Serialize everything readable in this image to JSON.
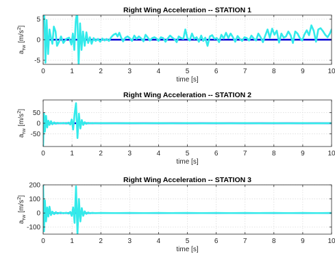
{
  "colors": {
    "reference_series": "#0000d6",
    "measured_series": "#33eaea"
  },
  "chart_data": [
    {
      "type": "line",
      "title": "Right Wing Acceleration -- STATION 1",
      "xlabel": "time [s]",
      "ylabel": {
        "base": "a",
        "sub": "rw",
        "unit_open": " [m/s",
        "unit_sup": "2",
        "unit_close": "]"
      },
      "xlim": [
        0,
        10
      ],
      "ylim": [
        -6,
        6
      ],
      "xticks": [
        0,
        1,
        2,
        3,
        4,
        5,
        6,
        7,
        8,
        9,
        10
      ],
      "yticks": [
        -5,
        0,
        5
      ],
      "grid": true,
      "series": [
        {
          "color": "#0000d6",
          "x": [
            0.1,
            10
          ],
          "y": [
            0,
            0
          ]
        },
        {
          "color": "#33eaea",
          "x": [
            0,
            0.04,
            0.08,
            0.12,
            0.17,
            0.22,
            0.27,
            0.32,
            0.37,
            0.43,
            0.48,
            0.55,
            0.62,
            0.7,
            0.8,
            0.9,
            0.98,
            1.03,
            1.08,
            1.13,
            1.18,
            1.23,
            1.28,
            1.33,
            1.38,
            1.44,
            1.5,
            1.56,
            1.62,
            1.68,
            1.75,
            1.82,
            1.9,
            1.98,
            2.05,
            2.13,
            2.2,
            2.28,
            2.36,
            2.44,
            2.52,
            2.58,
            2.64,
            2.7,
            2.77,
            2.85,
            2.93,
            3.0,
            3.08,
            3.16,
            3.24,
            3.32,
            3.4,
            3.48,
            3.55,
            3.62,
            3.7,
            3.78,
            3.86,
            3.93,
            4.0,
            4.08,
            4.16,
            4.24,
            4.32,
            4.4,
            4.48,
            4.56,
            4.63,
            4.7,
            4.78,
            4.86,
            4.93,
            5.0,
            5.08,
            5.16,
            5.24,
            5.32,
            5.4,
            5.48,
            5.55,
            5.62,
            5.7,
            5.78,
            5.86,
            5.94,
            6.02,
            6.1,
            6.18,
            6.26,
            6.34,
            6.42,
            6.5,
            6.58,
            6.66,
            6.74,
            6.82,
            6.9,
            6.98,
            7.06,
            7.14,
            7.22,
            7.3,
            7.38,
            7.46,
            7.54,
            7.62,
            7.7,
            7.78,
            7.86,
            7.94,
            8.02,
            8.1,
            8.18,
            8.26,
            8.34,
            8.42,
            8.5,
            8.58,
            8.66,
            8.74,
            8.82,
            8.9,
            8.98,
            9.06,
            9.14,
            9.22,
            9.3,
            9.38,
            9.46,
            9.54,
            9.62,
            9.7,
            9.78,
            9.86,
            9.94,
            10.0
          ],
          "y": [
            6.0,
            5.8,
            -5.6,
            4.8,
            -3.5,
            2.5,
            0.5,
            -1.0,
            3.2,
            2.0,
            -1.5,
            -0.5,
            0.8,
            -0.8,
            0.2,
            0.5,
            -1.2,
            1.5,
            -2.5,
            4.5,
            7.0,
            -6.0,
            4.0,
            -2.5,
            2.0,
            -1.5,
            1.8,
            -0.8,
            0.6,
            -1.0,
            0.4,
            -0.3,
            0.2,
            -0.5,
            0.3,
            -0.2,
            0.2,
            -0.3,
            0.6,
            1.2,
            1.5,
            0.8,
            1.7,
            0.6,
            -0.4,
            0.5,
            0.8,
            0.4,
            -0.3,
            1.0,
            0.2,
            0.8,
            0.3,
            -0.4,
            1.2,
            0.6,
            -0.2,
            0.4,
            0.6,
            0.3,
            -0.3,
            0.6,
            0.4,
            -0.5,
            0.3,
            1.0,
            0.5,
            0.1,
            -0.6,
            0.8,
            0.4,
            0.2,
            2.5,
            0.4,
            -0.2,
            1.5,
            0.2,
            0.6,
            -0.5,
            1.0,
            -0.3,
            0.5,
            -1.5,
            0.8,
            1.1,
            0.2,
            0.4,
            -0.6,
            1.2,
            0.3,
            1.7,
            0.4,
            1.5,
            0.6,
            -0.5,
            0.9,
            0.2,
            -0.3,
            0.6,
            0.4,
            -0.2,
            1.0,
            0.3,
            -0.2,
            1.5,
            0.6,
            -0.6,
            1.0,
            2.5,
            0.5,
            2.7,
            1.2,
            2.2,
            -0.7,
            1.5,
            0.5,
            0.8,
            2.0,
            1.1,
            -0.8,
            2.0,
            1.5,
            0.4,
            -0.2,
            1.3,
            2.3,
            1.1,
            3.5,
            2.2,
            -0.5,
            2.5,
            2.8,
            2.1,
            1.2,
            0.6,
            1.5,
            2.5
          ]
        }
      ]
    },
    {
      "type": "line",
      "title": "Right Wing Acceleration -- STATION 2",
      "xlabel": "time [s]",
      "ylabel": {
        "base": "a",
        "sub": "rw",
        "unit_open": " [m/s",
        "unit_sup": "2",
        "unit_close": "]"
      },
      "xlim": [
        0,
        10
      ],
      "ylim": [
        -110,
        110
      ],
      "xticks": [
        0,
        1,
        2,
        3,
        4,
        5,
        6,
        7,
        8,
        9,
        10
      ],
      "yticks": [
        -50,
        0,
        50
      ],
      "grid": true,
      "series": [
        {
          "color": "#0000d6",
          "x": [
            0,
            10
          ],
          "y": [
            0,
            0
          ]
        },
        {
          "color": "#33eaea",
          "x": [
            0,
            0.03,
            0.06,
            0.1,
            0.14,
            0.18,
            0.22,
            0.27,
            0.32,
            0.38,
            0.44,
            0.5,
            0.6,
            0.7,
            0.8,
            0.88,
            0.94,
            0.99,
            1.04,
            1.09,
            1.14,
            1.19,
            1.24,
            1.29,
            1.34,
            1.39,
            1.44,
            1.5,
            1.56,
            1.62,
            1.7,
            1.8,
            2.0,
            2.5,
            3.0,
            3.5,
            4.0,
            4.5,
            5.0,
            5.5,
            6.0,
            6.5,
            7.0,
            7.5,
            8.0,
            8.5,
            9.0,
            9.5,
            10.0
          ],
          "y": [
            -105,
            45,
            -40,
            35,
            -20,
            12,
            -8,
            10,
            -5,
            4,
            -3,
            2,
            -1,
            1.5,
            -2,
            3,
            -6,
            18,
            -30,
            45,
            95,
            -70,
            45,
            -25,
            15,
            -8,
            5,
            -3,
            2,
            -1,
            1,
            -0.5,
            0.5,
            -0.5,
            0.5,
            -0.5,
            0.5,
            -0.5,
            0.5,
            -0.5,
            0.5,
            -0.5,
            0.5,
            -0.5,
            0.5,
            -0.5,
            0.5,
            -0.5,
            0.5
          ]
        }
      ]
    },
    {
      "type": "line",
      "title": "Right Wing Acceleration   -- STATION 3",
      "xlabel": "time [s]",
      "ylabel": {
        "base": "a",
        "sub": "rw",
        "unit_open": " [m/s",
        "unit_sup": "2",
        "unit_close": "]"
      },
      "xlim": [
        0,
        10
      ],
      "ylim": [
        -150,
        200
      ],
      "xticks": [
        0,
        1,
        2,
        3,
        4,
        5,
        6,
        7,
        8,
        9,
        10
      ],
      "yticks": [
        -100,
        0,
        100,
        200
      ],
      "grid": true,
      "series": [
        {
          "color": "#0000d6",
          "x": [
            0,
            10
          ],
          "y": [
            0,
            0
          ]
        },
        {
          "color": "#33eaea",
          "x": [
            0,
            0.03,
            0.06,
            0.1,
            0.14,
            0.18,
            0.22,
            0.27,
            0.32,
            0.38,
            0.44,
            0.5,
            0.6,
            0.7,
            0.8,
            0.88,
            0.94,
            0.99,
            1.04,
            1.09,
            1.14,
            1.19,
            1.24,
            1.29,
            1.34,
            1.39,
            1.44,
            1.5,
            1.56,
            1.62,
            1.7,
            1.8,
            2.0,
            2.5,
            3.0,
            3.5,
            4.0,
            4.5,
            5.0,
            5.5,
            6.0,
            6.5,
            7.0,
            7.5,
            8.0,
            8.5,
            9.0,
            9.5,
            10.0
          ],
          "y": [
            200,
            -130,
            90,
            -60,
            40,
            -25,
            45,
            -15,
            10,
            -8,
            6,
            -4,
            3,
            -2,
            2,
            -4,
            8,
            -20,
            40,
            -70,
            190,
            -150,
            100,
            -60,
            35,
            -20,
            12,
            -6,
            4,
            -2,
            1,
            -1,
            0.5,
            -0.5,
            0.5,
            -0.5,
            0.5,
            -0.5,
            0.5,
            -0.5,
            0.5,
            -0.5,
            0.5,
            -0.5,
            0.5,
            -0.5,
            0.5,
            -0.5,
            0.5
          ]
        }
      ]
    }
  ]
}
